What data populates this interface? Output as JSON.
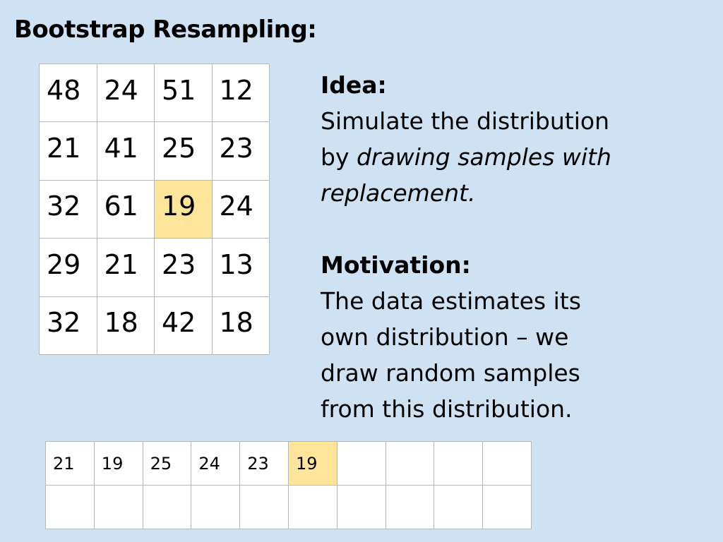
{
  "title": "Bootstrap Resampling:",
  "data_grid": [
    [
      "48",
      "24",
      "51",
      "12"
    ],
    [
      "21",
      "41",
      "25",
      "23"
    ],
    [
      "32",
      "61",
      "19",
      "24"
    ],
    [
      "29",
      "21",
      "23",
      "13"
    ],
    [
      "32",
      "18",
      "42",
      "18"
    ]
  ],
  "data_grid_highlight": {
    "row": 2,
    "col": 2
  },
  "highlight_color": "#ffe599",
  "background_color": "#cfe2f3",
  "idea": {
    "heading": "Idea:",
    "line1": "Simulate the distribution",
    "line2_plain": "by ",
    "line2_italic": "drawing samples with",
    "line3_italic": "replacement."
  },
  "motivation": {
    "heading": "Motivation:",
    "lines": [
      "The data estimates its",
      "own distribution – we",
      "draw random samples",
      "from this distribution."
    ]
  },
  "sample_grid": [
    [
      "21",
      "19",
      "25",
      "24",
      "23",
      "19",
      "",
      "",
      "",
      ""
    ],
    [
      "",
      "",
      "",
      "",
      "",
      "",
      "",
      "",
      "",
      ""
    ]
  ],
  "sample_grid_highlight": {
    "row": 0,
    "col": 5
  }
}
